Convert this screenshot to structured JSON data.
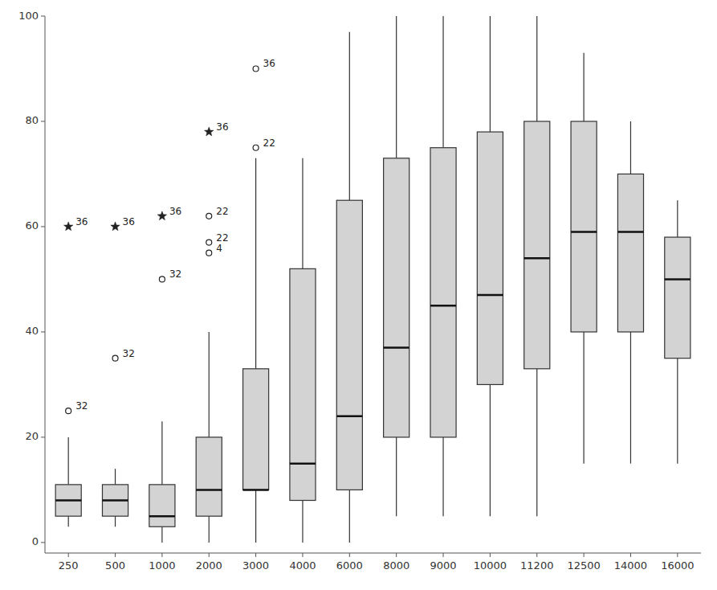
{
  "chart_data": {
    "type": "box",
    "categories": [
      "250",
      "500",
      "1000",
      "2000",
      "3000",
      "4000",
      "6000",
      "8000",
      "9000",
      "10000",
      "11200",
      "12500",
      "14000",
      "16000"
    ],
    "boxes": [
      {
        "q1": 5,
        "median": 8,
        "q3": 11,
        "whisker_low": 3,
        "whisker_high": 20,
        "fliers_circle": [
          25
        ],
        "fliers_star": [
          60
        ],
        "flier_labels_circle": [
          "32"
        ],
        "flier_labels_star": [
          "36"
        ]
      },
      {
        "q1": 5,
        "median": 8,
        "q3": 11,
        "whisker_low": 3,
        "whisker_high": 14,
        "fliers_circle": [
          35
        ],
        "fliers_star": [
          60
        ],
        "flier_labels_circle": [
          "32"
        ],
        "flier_labels_star": [
          "36"
        ]
      },
      {
        "q1": 3,
        "median": 5,
        "q3": 11,
        "whisker_low": 0,
        "whisker_high": 23,
        "fliers_circle": [
          50
        ],
        "fliers_star": [
          62
        ],
        "flier_labels_circle": [
          "32"
        ],
        "flier_labels_star": [
          "36"
        ]
      },
      {
        "q1": 5,
        "median": 10,
        "q3": 20,
        "whisker_low": 0,
        "whisker_high": 40,
        "fliers_circle": [
          55,
          57,
          62
        ],
        "fliers_star": [
          78
        ],
        "flier_labels_circle": [
          "4",
          "22",
          "22"
        ],
        "flier_labels_star": [
          "36"
        ]
      },
      {
        "q1": 10,
        "median": 10,
        "q3": 33,
        "whisker_low": 0,
        "whisker_high": 73,
        "fliers_circle": [
          75,
          90
        ],
        "fliers_star": [],
        "flier_labels_circle": [
          "22",
          "36"
        ],
        "flier_labels_star": []
      },
      {
        "q1": 8,
        "median": 15,
        "q3": 52,
        "whisker_low": 0,
        "whisker_high": 73,
        "fliers_circle": [],
        "fliers_star": [],
        "flier_labels_circle": [],
        "flier_labels_star": []
      },
      {
        "q1": 10,
        "median": 24,
        "q3": 65,
        "whisker_low": 0,
        "whisker_high": 97,
        "fliers_circle": [],
        "fliers_star": [],
        "flier_labels_circle": [],
        "flier_labels_star": []
      },
      {
        "q1": 20,
        "median": 37,
        "q3": 73,
        "whisker_low": 5,
        "whisker_high": 100,
        "fliers_circle": [],
        "fliers_star": [],
        "flier_labels_circle": [],
        "flier_labels_star": []
      },
      {
        "q1": 20,
        "median": 45,
        "q3": 75,
        "whisker_low": 5,
        "whisker_high": 100,
        "fliers_circle": [],
        "fliers_star": [],
        "flier_labels_circle": [],
        "flier_labels_star": []
      },
      {
        "q1": 30,
        "median": 47,
        "q3": 78,
        "whisker_low": 5,
        "whisker_high": 100,
        "fliers_circle": [],
        "fliers_star": [],
        "flier_labels_circle": [],
        "flier_labels_star": []
      },
      {
        "q1": 33,
        "median": 54,
        "q3": 80,
        "whisker_low": 5,
        "whisker_high": 100,
        "fliers_circle": [],
        "fliers_star": [],
        "flier_labels_circle": [],
        "flier_labels_star": []
      },
      {
        "q1": 40,
        "median": 59,
        "q3": 80,
        "whisker_low": 15,
        "whisker_high": 93,
        "fliers_circle": [],
        "fliers_star": [],
        "flier_labels_circle": [],
        "flier_labels_star": []
      },
      {
        "q1": 40,
        "median": 59,
        "q3": 70,
        "whisker_low": 15,
        "whisker_high": 80,
        "fliers_circle": [],
        "fliers_star": [],
        "flier_labels_circle": [],
        "flier_labels_star": []
      },
      {
        "q1": 35,
        "median": 50,
        "q3": 58,
        "whisker_low": 15,
        "whisker_high": 65,
        "fliers_circle": [],
        "fliers_star": [],
        "flier_labels_circle": [],
        "flier_labels_star": []
      }
    ],
    "ylim": [
      -2,
      100
    ],
    "yticks": [
      0,
      20,
      40,
      60,
      80,
      100
    ],
    "color": "#d3d3d3",
    "grid": false
  }
}
